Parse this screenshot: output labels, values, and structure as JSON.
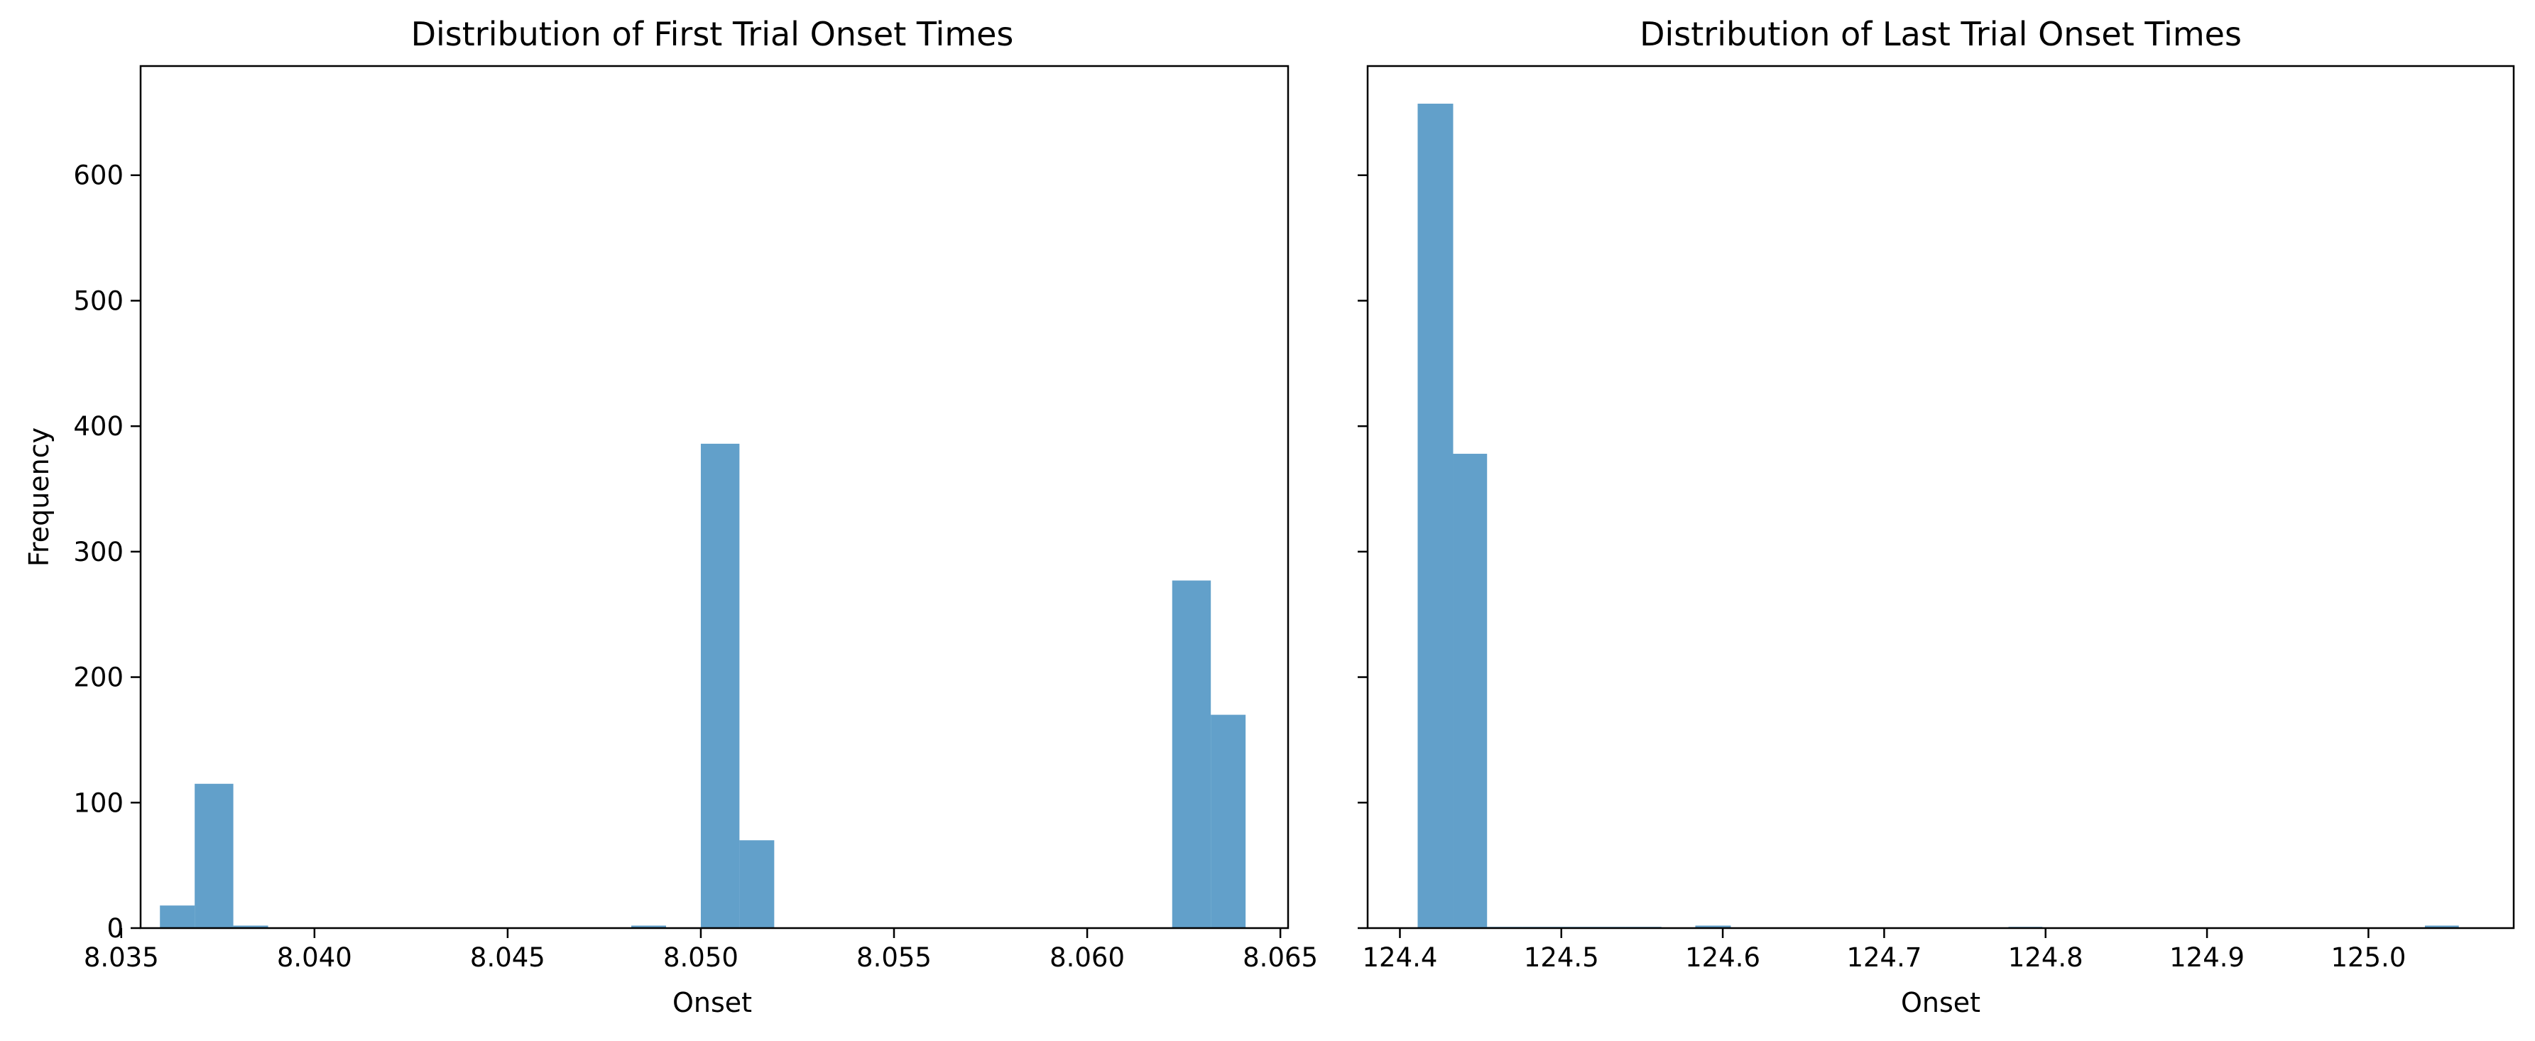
{
  "chart_data": [
    {
      "type": "bar",
      "subtype": "histogram",
      "title": "Distribution of First Trial Onset Times",
      "xlabel": "Onset",
      "ylabel": "Frequency",
      "xlim": [
        8.0355,
        8.0652
      ],
      "ylim": [
        0,
        687
      ],
      "bar_color": "#1f77b4",
      "bar_opacity": 0.7,
      "xticks": [
        "8.035",
        "8.040",
        "8.045",
        "8.050",
        "8.055",
        "8.060",
        "8.065"
      ],
      "xtick_values": [
        8.035,
        8.04,
        8.045,
        8.05,
        8.055,
        8.06,
        8.065
      ],
      "yticks": [
        "0",
        "100",
        "200",
        "300",
        "400",
        "500",
        "600"
      ],
      "ytick_values": [
        0,
        100,
        200,
        300,
        400,
        500,
        600
      ],
      "bins": [
        {
          "x0": 8.036,
          "x1": 8.0369,
          "value": 18
        },
        {
          "x0": 8.0369,
          "x1": 8.0379,
          "value": 115
        },
        {
          "x0": 8.0379,
          "x1": 8.0388,
          "value": 2
        },
        {
          "x0": 8.0482,
          "x1": 8.0491,
          "value": 2
        },
        {
          "x0": 8.05,
          "x1": 8.051,
          "value": 386
        },
        {
          "x0": 8.051,
          "x1": 8.0519,
          "value": 70
        },
        {
          "x0": 8.0622,
          "x1": 8.0632,
          "value": 277
        },
        {
          "x0": 8.0632,
          "x1": 8.0641,
          "value": 170
        }
      ]
    },
    {
      "type": "bar",
      "subtype": "histogram",
      "title": "Distribution of Last Trial Onset Times",
      "xlabel": "Onset",
      "ylabel": "",
      "xlim": [
        124.38,
        125.09
      ],
      "ylim": [
        0,
        687
      ],
      "bar_color": "#1f77b4",
      "bar_opacity": 0.7,
      "xticks": [
        "124.4",
        "124.5",
        "124.6",
        "124.7",
        "124.8",
        "124.9",
        "125.0"
      ],
      "xtick_values": [
        124.4,
        124.5,
        124.6,
        124.7,
        124.8,
        124.9,
        125.0
      ],
      "yticks": [
        "",
        "",
        "",
        "",
        "",
        "",
        ""
      ],
      "ytick_values": [
        0,
        100,
        200,
        300,
        400,
        500,
        600
      ],
      "bins": [
        {
          "x0": 124.411,
          "x1": 124.433,
          "value": 657
        },
        {
          "x0": 124.433,
          "x1": 124.454,
          "value": 378
        },
        {
          "x0": 124.454,
          "x1": 124.476,
          "value": 1
        },
        {
          "x0": 124.476,
          "x1": 124.497,
          "value": 1
        },
        {
          "x0": 124.497,
          "x1": 124.519,
          "value": 1
        },
        {
          "x0": 124.519,
          "x1": 124.54,
          "value": 1
        },
        {
          "x0": 124.54,
          "x1": 124.562,
          "value": 1
        },
        {
          "x0": 124.583,
          "x1": 124.605,
          "value": 2
        },
        {
          "x0": 124.777,
          "x1": 124.798,
          "value": 1
        },
        {
          "x0": 125.035,
          "x1": 125.056,
          "value": 2
        }
      ]
    }
  ]
}
